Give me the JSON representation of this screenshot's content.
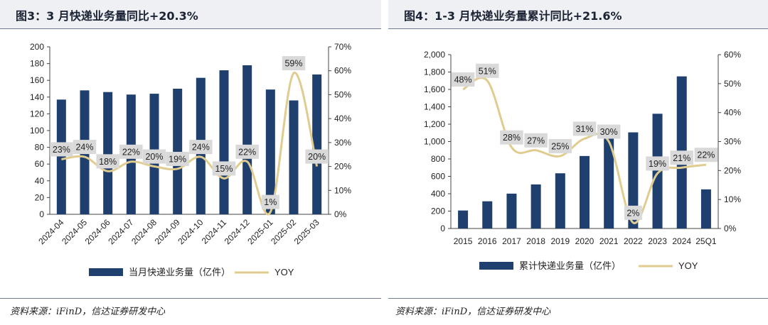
{
  "colors": {
    "bar": "#1f3f6e",
    "line": "#e0cc8f",
    "label_bg": "#d9d9d9"
  },
  "charts": [
    {
      "title": "图3：3 月快递业务量同比+20.3%",
      "source": "资料来源：iFinD，信达证券研发中心",
      "legend": {
        "bar": "当月快递业务量（亿件）",
        "line": "YOY"
      }
    },
    {
      "title": "图4：1-3 月快递业务量累计同比+21.6%",
      "source": "资料来源：iFinD，信达证券研发中心",
      "legend": {
        "bar": "累计快递业务量（亿件）",
        "line": "YOY"
      }
    }
  ],
  "chart_data": [
    {
      "type": "bar",
      "title": "图3：3 月快递业务量同比+20.3%",
      "categories": [
        "2024-04",
        "2024-05",
        "2024-06",
        "2024-07",
        "2024-08",
        "2024-09",
        "2024-10",
        "2024-11",
        "2024-12",
        "2025-01",
        "2025-02",
        "2025-03"
      ],
      "series": [
        {
          "name": "当月快递业务量（亿件）",
          "type": "bar",
          "axis": "left",
          "values": [
            137,
            148,
            146,
            143,
            144,
            150,
            163,
            172,
            178,
            149,
            136,
            167
          ]
        },
        {
          "name": "YOY",
          "type": "line",
          "axis": "right",
          "values": [
            23,
            24,
            18,
            22,
            20,
            19,
            24,
            15,
            22,
            1,
            59,
            20
          ],
          "labels": [
            "23%",
            "24%",
            "18%",
            "22%",
            "20%",
            "19%",
            "24%",
            "15%",
            "22%",
            "1%",
            "59%",
            "20%"
          ]
        }
      ],
      "y_left": {
        "min": 0,
        "max": 200,
        "step": 20,
        "ticks": [
          "0",
          "20",
          "40",
          "60",
          "80",
          "100",
          "120",
          "140",
          "160",
          "180",
          "200"
        ]
      },
      "y_right": {
        "min": 0,
        "max": 70,
        "step": 10,
        "ticks": [
          "0%",
          "10%",
          "20%",
          "30%",
          "40%",
          "50%",
          "60%",
          "70%"
        ]
      },
      "grid": false
    },
    {
      "type": "bar",
      "title": "图4：1-3 月快递业务量累计同比+21.6%",
      "categories": [
        "2015",
        "2016",
        "2017",
        "2018",
        "2019",
        "2020",
        "2021",
        "2022",
        "2023",
        "2024",
        "25Q1"
      ],
      "series": [
        {
          "name": "累计快递业务量（亿件）",
          "type": "bar",
          "axis": "left",
          "values": [
            207,
            313,
            401,
            507,
            635,
            834,
            1083,
            1106,
            1320,
            1750,
            450
          ]
        },
        {
          "name": "YOY",
          "type": "line",
          "axis": "right",
          "values": [
            48,
            51,
            28,
            27,
            25,
            31,
            30,
            2,
            19,
            21,
            22
          ],
          "labels": [
            "48%",
            "51%",
            "28%",
            "27%",
            "25%",
            "31%",
            "30%",
            "2%",
            "19%",
            "21%",
            "22%"
          ]
        }
      ],
      "y_left": {
        "min": 0,
        "max": 2000,
        "step": 200,
        "ticks": [
          "0",
          "200",
          "400",
          "600",
          "800",
          "1,000",
          "1,200",
          "1,400",
          "1,600",
          "1,800",
          "2,000"
        ]
      },
      "y_right": {
        "min": 0,
        "max": 60,
        "step": 10,
        "ticks": [
          "0%",
          "10%",
          "20%",
          "30%",
          "40%",
          "50%",
          "60%"
        ]
      },
      "grid": false
    }
  ]
}
